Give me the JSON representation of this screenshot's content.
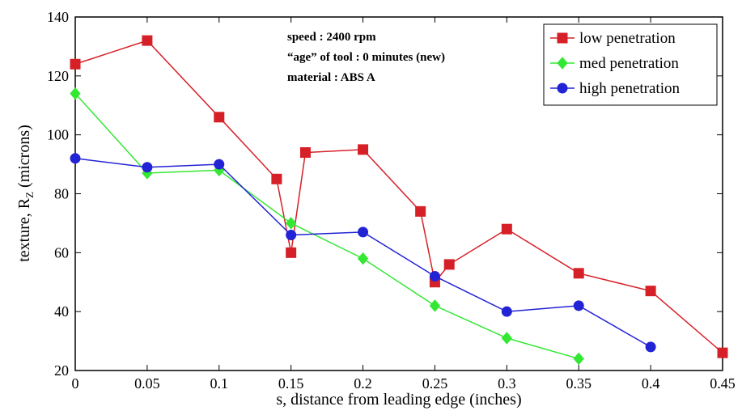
{
  "chart_data": {
    "type": "line",
    "xlabel": "s, distance from leading edge (inches)",
    "ylabel": "texture, R",
    "ylabel_sub": "Z",
    "ylabel_tail": " (microns)",
    "xlim": [
      0,
      0.45
    ],
    "ylim": [
      20,
      140
    ],
    "xticks": [
      0,
      0.05,
      0.1,
      0.15,
      0.2,
      0.25,
      0.3,
      0.35,
      0.4,
      0.45
    ],
    "xtick_labels": [
      "0",
      "0.05",
      "0.1",
      "0.15",
      "0.2",
      "0.25",
      "0.3",
      "0.35",
      "0.4",
      "0.45"
    ],
    "yticks": [
      20,
      40,
      60,
      80,
      100,
      120,
      140
    ],
    "ytick_labels": [
      "20",
      "40",
      "60",
      "80",
      "100",
      "120",
      "140"
    ],
    "grid": false,
    "legend_position": "top-right",
    "annotations": [
      "speed : 2400 rpm",
      "“age” of tool : 0 minutes (new)",
      "material : ABS A"
    ],
    "series": [
      {
        "name": "low penetration",
        "color": "#d62027",
        "marker": "square",
        "x": [
          0,
          0.05,
          0.1,
          0.14,
          0.15,
          0.16,
          0.2,
          0.24,
          0.25,
          0.26,
          0.3,
          0.35,
          0.4,
          0.45
        ],
        "y": [
          124,
          132,
          106,
          85,
          60,
          94,
          95,
          74,
          50,
          56,
          68,
          53,
          47,
          26
        ]
      },
      {
        "name": "med penetration",
        "color": "#33e833",
        "marker": "diamond",
        "x": [
          0,
          0.05,
          0.1,
          0.15,
          0.2,
          0.25,
          0.3,
          0.35
        ],
        "y": [
          114,
          87,
          88,
          70,
          58,
          42,
          31,
          24
        ]
      },
      {
        "name": "high penetration",
        "color": "#2323d6",
        "marker": "circle",
        "x": [
          0,
          0.05,
          0.1,
          0.15,
          0.2,
          0.25,
          0.3,
          0.35,
          0.4
        ],
        "y": [
          92,
          89,
          90,
          66,
          67,
          52,
          40,
          42,
          28
        ]
      }
    ]
  }
}
